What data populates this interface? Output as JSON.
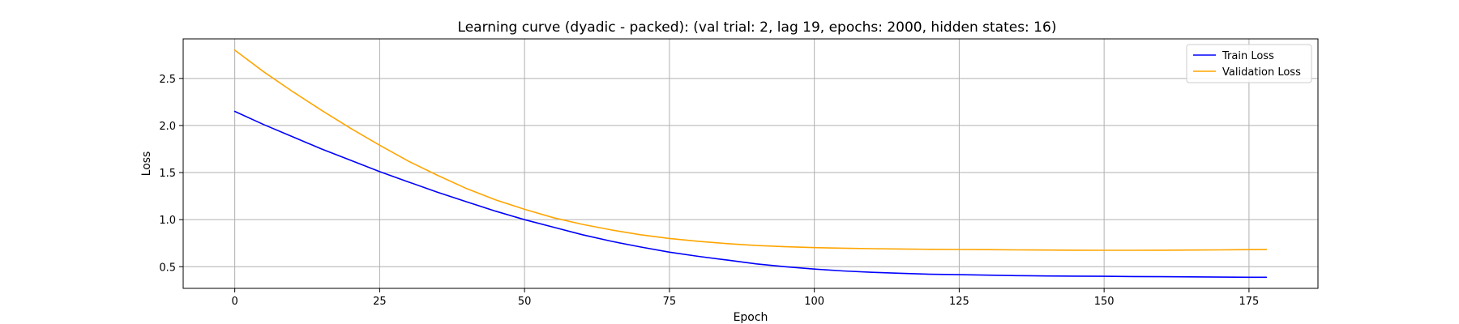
{
  "chart_data": {
    "type": "line",
    "title": "Learning curve (dyadic - packed): (val trial: 2, lag 19, epochs: 2000, hidden states: 16)",
    "xlabel": "Epoch",
    "ylabel": "Loss",
    "xlim": [
      -8.9,
      186.9
    ],
    "ylim": [
      0.27,
      2.92
    ],
    "xticks": [
      0,
      25,
      50,
      75,
      100,
      125,
      150,
      175
    ],
    "yticks": [
      0.5,
      1.0,
      1.5,
      2.0,
      2.5
    ],
    "xtick_labels": [
      "0",
      "25",
      "50",
      "75",
      "100",
      "125",
      "150",
      "175"
    ],
    "ytick_labels": [
      "0.5",
      "1.0",
      "1.5",
      "2.0",
      "2.5"
    ],
    "grid": true,
    "legend_position": "top-right",
    "series": [
      {
        "name": "Train Loss",
        "color": "#0000ff",
        "x": [
          0,
          5,
          10,
          15,
          20,
          25,
          30,
          35,
          40,
          45,
          50,
          55,
          60,
          65,
          70,
          75,
          80,
          85,
          90,
          95,
          100,
          105,
          110,
          115,
          120,
          125,
          130,
          135,
          140,
          145,
          150,
          155,
          160,
          165,
          170,
          175,
          178
        ],
        "y": [
          2.15,
          2.01,
          1.88,
          1.75,
          1.63,
          1.51,
          1.4,
          1.29,
          1.19,
          1.09,
          1.0,
          0.92,
          0.84,
          0.77,
          0.71,
          0.655,
          0.61,
          0.57,
          0.53,
          0.5,
          0.475,
          0.455,
          0.44,
          0.43,
          0.42,
          0.415,
          0.41,
          0.405,
          0.402,
          0.4,
          0.398,
          0.396,
          0.394,
          0.392,
          0.39,
          0.388,
          0.388
        ]
      },
      {
        "name": "Validation Loss",
        "color": "#ffa500",
        "x": [
          0,
          5,
          10,
          15,
          20,
          25,
          30,
          35,
          40,
          45,
          50,
          55,
          60,
          65,
          70,
          75,
          80,
          85,
          90,
          95,
          100,
          105,
          110,
          115,
          120,
          125,
          130,
          135,
          140,
          145,
          150,
          155,
          160,
          165,
          170,
          175,
          178
        ],
        "y": [
          2.8,
          2.57,
          2.36,
          2.16,
          1.97,
          1.79,
          1.62,
          1.47,
          1.33,
          1.21,
          1.11,
          1.02,
          0.95,
          0.89,
          0.84,
          0.8,
          0.77,
          0.745,
          0.725,
          0.712,
          0.703,
          0.697,
          0.692,
          0.688,
          0.685,
          0.683,
          0.681,
          0.679,
          0.677,
          0.675,
          0.674,
          0.674,
          0.675,
          0.677,
          0.679,
          0.681,
          0.682
        ]
      }
    ]
  }
}
